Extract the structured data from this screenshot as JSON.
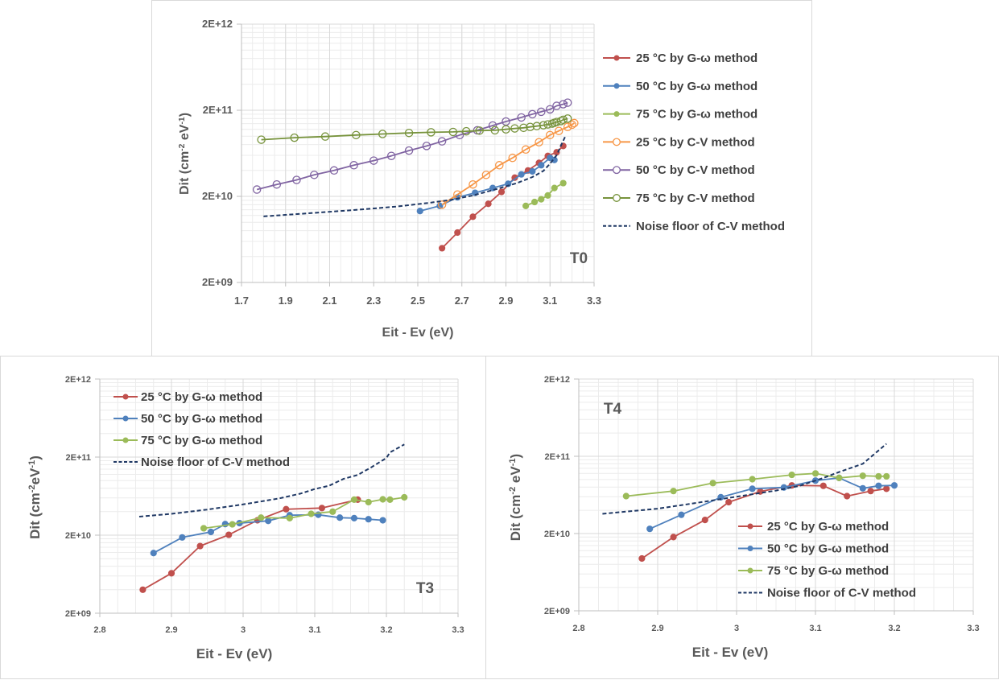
{
  "colors": {
    "red": "#c0504d",
    "blue": "#4f81bd",
    "green_light": "#9bbb59",
    "orange": "#f79646",
    "purple": "#8064a2",
    "green_dark": "#77933c",
    "navy": "#1f3864"
  },
  "chart_data": [
    {
      "id": "t0",
      "type": "scatter",
      "panel_label": "T0",
      "title": "",
      "xlabel": "Eit - Ev (eV)",
      "ylabel": "Dit (cm-2 eV-1)",
      "ylabel_parts": {
        "base": "Dit (cm",
        "sup1": "-2",
        "mid": " eV",
        "sup2": "-1",
        "end": ")"
      },
      "xlim": [
        1.7,
        3.3
      ],
      "ylim": [
        2000000000.0,
        2000000000000.0
      ],
      "yscale": "log",
      "x_ticks": [
        "1.7",
        "1.9",
        "2.1",
        "2.3",
        "2.5",
        "2.7",
        "2.9",
        "3.1",
        "3.3"
      ],
      "x_tick_values": [
        1.7,
        1.9,
        2.1,
        2.3,
        2.5,
        2.7,
        2.9,
        3.1,
        3.3
      ],
      "y_ticks": [
        "2E+09",
        "2E+10",
        "2E+11",
        "2E+12"
      ],
      "y_tick_values": [
        2000000000.0,
        20000000000.0,
        200000000000.0,
        2000000000000.0
      ],
      "grid": true,
      "legend_position": "right",
      "series": [
        {
          "name": "25 °C by G-ω method",
          "color": "red",
          "marker": "filled",
          "style": "solid",
          "x": [
            2.61,
            2.68,
            2.75,
            2.82,
            2.88,
            2.94,
            3.0,
            3.05,
            3.09,
            3.13,
            3.16
          ],
          "y": [
            5000000000.0,
            7600000000.0,
            11600000000.0,
            16400000000.0,
            22500000000.0,
            33000000000.0,
            40000000000.0,
            49000000000.0,
            59000000000.0,
            65000000000.0,
            77000000000.0
          ]
        },
        {
          "name": "50 °C by G-ω method",
          "color": "blue",
          "marker": "filled",
          "style": "solid",
          "x": [
            2.51,
            2.6,
            2.68,
            2.76,
            2.84,
            2.91,
            2.97,
            3.02,
            3.06,
            3.1,
            3.12
          ],
          "y": [
            13500000000.0,
            15500000000.0,
            19500000000.0,
            22000000000.0,
            25000000000.0,
            28000000000.0,
            36000000000.0,
            39000000000.0,
            46000000000.0,
            56000000000.0,
            53000000000.0
          ]
        },
        {
          "name": "75 °C  by G-ω method",
          "color": "green_light",
          "marker": "filled",
          "style": "solid",
          "x": [
            2.99,
            3.03,
            3.06,
            3.09,
            3.12,
            3.16
          ],
          "y": [
            15500000000.0,
            17200000000.0,
            18500000000.0,
            20500000000.0,
            25000000000.0,
            28500000000.0
          ]
        },
        {
          "name": "25 °C by C-V method",
          "color": "orange",
          "marker": "open",
          "style": "solid",
          "x": [
            2.61,
            2.68,
            2.75,
            2.81,
            2.87,
            2.93,
            2.99,
            3.05,
            3.1,
            3.14,
            3.18,
            3.2,
            3.21
          ],
          "y": [
            16000000000.0,
            21000000000.0,
            27500000000.0,
            35500000000.0,
            46000000000.0,
            56000000000.0,
            70000000000.0,
            85000000000.0,
            103000000000.0,
            115000000000.0,
            128000000000.0,
            136000000000.0,
            142000000000.0
          ]
        },
        {
          "name": "50 °C by C-V method",
          "color": "purple",
          "marker": "open",
          "style": "solid",
          "x": [
            1.77,
            1.86,
            1.95,
            2.03,
            2.12,
            2.21,
            2.3,
            2.38,
            2.46,
            2.54,
            2.61,
            2.69,
            2.77,
            2.84,
            2.9,
            2.97,
            3.02,
            3.06,
            3.1,
            3.13,
            3.16,
            3.18
          ],
          "y": [
            24000000000.0,
            27500000000.0,
            31000000000.0,
            35500000000.0,
            40000000000.0,
            46000000000.0,
            52000000000.0,
            59000000000.0,
            68000000000.0,
            77000000000.0,
            87000000000.0,
            103000000000.0,
            117000000000.0,
            133000000000.0,
            148000000000.0,
            165000000000.0,
            180000000000.0,
            192000000000.0,
            205000000000.0,
            225000000000.0,
            235000000000.0,
            245000000000.0
          ]
        },
        {
          "name": "75 °C by C-V method",
          "color": "green_dark",
          "marker": "open",
          "style": "solid",
          "x": [
            1.79,
            1.94,
            2.08,
            2.22,
            2.34,
            2.46,
            2.56,
            2.66,
            2.72,
            2.78,
            2.85,
            2.9,
            2.94,
            2.98,
            3.01,
            3.04,
            3.07,
            3.09,
            3.11,
            3.12,
            3.13,
            3.15,
            3.16,
            3.18
          ],
          "y": [
            91000000000.0,
            96000000000.0,
            99000000000.0,
            103000000000.0,
            106000000000.0,
            109000000000.0,
            111000000000.0,
            112000000000.0,
            114000000000.0,
            116000000000.0,
            117000000000.0,
            120000000000.0,
            123000000000.0,
            125000000000.0,
            128000000000.0,
            131000000000.0,
            134000000000.0,
            137000000000.0,
            140000000000.0,
            143000000000.0,
            146000000000.0,
            150000000000.0,
            155000000000.0,
            160000000000.0
          ]
        },
        {
          "name": "Noise floor of C-V method",
          "color": "navy",
          "marker": "none",
          "style": "dashed",
          "x": [
            1.8,
            2.0,
            2.2,
            2.4,
            2.55,
            2.65,
            2.75,
            2.85,
            2.95,
            3.02,
            3.07,
            3.1,
            3.13,
            3.15,
            3.17
          ],
          "y": [
            11700000000.0,
            12700000000.0,
            13800000000.0,
            15200000000.0,
            16800000000.0,
            18200000000.0,
            20500000000.0,
            24000000000.0,
            28500000000.0,
            33500000000.0,
            39500000000.0,
            48000000000.0,
            60000000000.0,
            78000000000.0,
            100000000000.0
          ]
        }
      ]
    },
    {
      "id": "t3",
      "type": "scatter",
      "panel_label": "T3",
      "title": "",
      "xlabel": "Eit - Ev (eV)",
      "ylabel": "Dit (cm-2 eV-1)",
      "ylabel_parts": {
        "base": "Dit (cm",
        "sup1": "-2",
        "mid": "eV",
        "sup2": "-1",
        "end": ")"
      },
      "xlim": [
        2.8,
        3.3
      ],
      "ylim": [
        2000000000.0,
        2000000000000.0
      ],
      "yscale": "log",
      "x_ticks": [
        "2.8",
        "2.9",
        "3",
        "3.1",
        "3.2",
        "3.3"
      ],
      "x_tick_values": [
        2.8,
        2.9,
        3.0,
        3.1,
        3.2,
        3.3
      ],
      "y_ticks": [
        "2E+09",
        "2E+10",
        "2E+11",
        "2E+12"
      ],
      "y_tick_values": [
        2000000000.0,
        20000000000.0,
        200000000000.0,
        2000000000000.0
      ],
      "grid": true,
      "legend_position": "top-left",
      "series": [
        {
          "name": "25 °C by G-ω method",
          "color": "red",
          "marker": "filled",
          "style": "solid",
          "x": [
            2.86,
            2.9,
            2.94,
            2.98,
            3.02,
            3.06,
            3.11,
            3.16
          ],
          "y": [
            4000000000.0,
            6500000000.0,
            14500000000.0,
            20200000000.0,
            31000000000.0,
            43000000000.0,
            44500000000.0,
            57000000000.0
          ]
        },
        {
          "name": "50 °C by G-ω method",
          "color": "blue",
          "marker": "filled",
          "style": "solid",
          "x": [
            2.875,
            2.915,
            2.955,
            2.975,
            2.995,
            3.035,
            3.065,
            3.105,
            3.135,
            3.155,
            3.175,
            3.195
          ],
          "y": [
            11800000000.0,
            18700000000.0,
            22000000000.0,
            27700000000.0,
            28500000000.0,
            30500000000.0,
            36000000000.0,
            36500000000.0,
            33500000000.0,
            33000000000.0,
            32000000000.0,
            31000000000.0
          ]
        },
        {
          "name": "75 °C by G-ω method",
          "color": "green_light",
          "marker": "filled",
          "style": "solid",
          "x": [
            2.945,
            2.985,
            3.025,
            3.065,
            3.095,
            3.125,
            3.155,
            3.175,
            3.195,
            3.205,
            3.225
          ],
          "y": [
            24500000000.0,
            27500000000.0,
            33500000000.0,
            33000000000.0,
            37500000000.0,
            40000000000.0,
            57000000000.0,
            53000000000.0,
            57500000000.0,
            57000000000.0,
            61000000000.0
          ]
        },
        {
          "name": "Noise floor of C-V method",
          "color": "navy",
          "marker": "none",
          "style": "dashed",
          "x": [
            2.855,
            2.9,
            2.95,
            3.0,
            3.05,
            3.08,
            3.1,
            3.12,
            3.14,
            3.16,
            3.18,
            3.2,
            3.205,
            3.225
          ],
          "y": [
            34500000000.0,
            37500000000.0,
            42500000000.0,
            49500000000.0,
            59000000000.0,
            68000000000.0,
            78000000000.0,
            86000000000.0,
            105000000000.0,
            118000000000.0,
            150000000000.0,
            195000000000.0,
            230000000000.0,
            290000000000.0
          ]
        }
      ]
    },
    {
      "id": "t4",
      "type": "scatter",
      "panel_label": "T4",
      "title": "",
      "xlabel": "Eit - Ev (eV)",
      "ylabel": "Dit (cm-2 eV-1)",
      "ylabel_parts": {
        "base": "Dit (cm",
        "sup1": "-2",
        "mid": " eV",
        "sup2": "-1",
        "end": ")"
      },
      "xlim": [
        2.8,
        3.3
      ],
      "ylim": [
        2000000000.0,
        2000000000000.0
      ],
      "yscale": "log",
      "x_ticks": [
        "2.8",
        "2.9",
        "3",
        "3.1",
        "3.2",
        "3.3"
      ],
      "x_tick_values": [
        2.8,
        2.9,
        3.0,
        3.1,
        3.2,
        3.3
      ],
      "y_ticks": [
        "2E+09",
        "2E+10",
        "2E+11",
        "2E+12"
      ],
      "y_tick_values": [
        2000000000.0,
        20000000000.0,
        200000000000.0,
        2000000000000.0
      ],
      "grid": true,
      "legend_position": "bottom-right",
      "series": [
        {
          "name": "25 °C by G-ω method",
          "color": "red",
          "marker": "filled",
          "style": "solid",
          "x": [
            2.88,
            2.92,
            2.96,
            2.99,
            3.03,
            3.07,
            3.11,
            3.14,
            3.17,
            3.19
          ],
          "y": [
            9500000000.0,
            18000000000.0,
            30000000000.0,
            51000000000.0,
            70000000000.0,
            84000000000.0,
            83000000000.0,
            61000000000.0,
            71000000000.0,
            76000000000.0
          ]
        },
        {
          "name": "50 °C by G-ω method",
          "color": "blue",
          "marker": "filled",
          "style": "solid",
          "x": [
            2.89,
            2.93,
            2.98,
            3.02,
            3.06,
            3.1,
            3.13,
            3.16,
            3.18,
            3.2
          ],
          "y": [
            23000000000.0,
            35000000000.0,
            59000000000.0,
            76000000000.0,
            79000000000.0,
            97000000000.0,
            105000000000.0,
            77000000000.0,
            83000000000.0,
            84000000000.0
          ]
        },
        {
          "name": "75 °C by G-ω method",
          "color": "green_light",
          "marker": "filled",
          "style": "solid",
          "x": [
            2.86,
            2.92,
            2.97,
            3.02,
            3.07,
            3.1,
            3.13,
            3.16,
            3.18,
            3.19
          ],
          "y": [
            61000000000.0,
            71000000000.0,
            90000000000.0,
            101000000000.0,
            115000000000.0,
            120000000000.0,
            105000000000.0,
            112000000000.0,
            110000000000.0,
            110000000000.0
          ]
        },
        {
          "name": "Noise floor of C-V method",
          "color": "navy",
          "marker": "none",
          "style": "dashed",
          "x": [
            2.83,
            2.9,
            2.95,
            3.0,
            3.05,
            3.08,
            3.11,
            3.13,
            3.16,
            3.19
          ],
          "y": [
            36000000000.0,
            42000000000.0,
            50000000000.0,
            60000000000.0,
            72000000000.0,
            83000000000.0,
            105000000000.0,
            125000000000.0,
            160000000000.0,
            290000000000.0
          ]
        }
      ]
    }
  ]
}
